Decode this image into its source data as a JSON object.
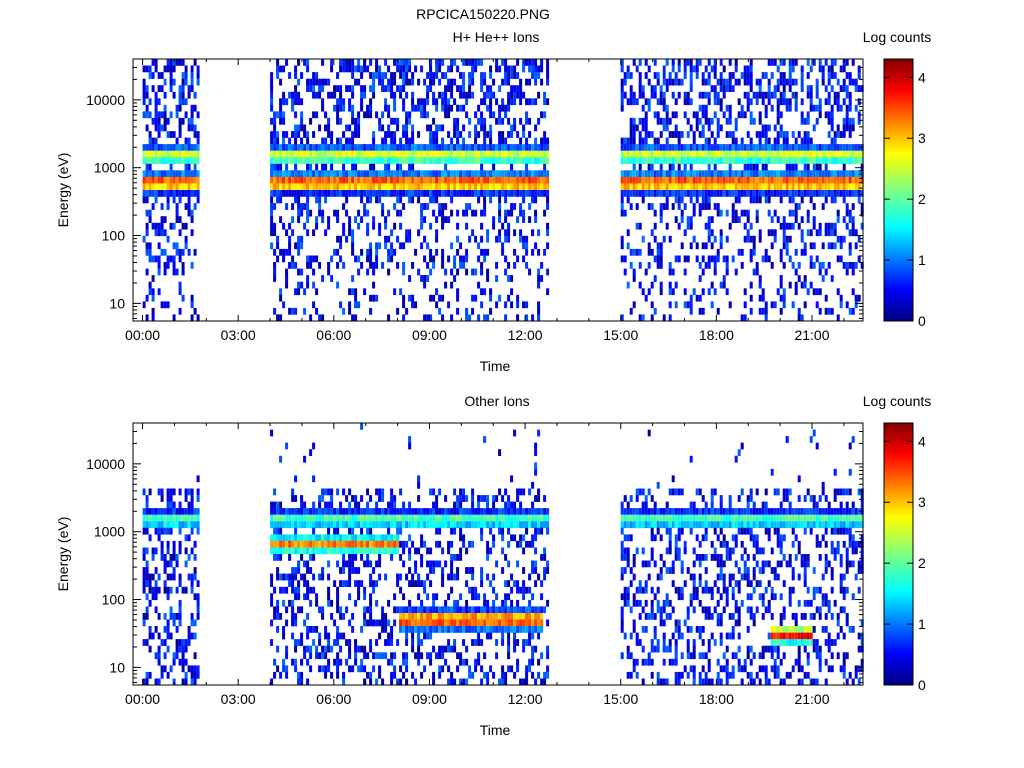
{
  "page": {
    "title": "RPCICA150220.PNG"
  },
  "chart_data": [
    {
      "type": "heatmap",
      "title": "H+ He++ Ions",
      "xlabel": "Time",
      "ylabel": "Energy (eV)",
      "colorbar_label": "Log counts",
      "x_ticks": [
        "00:00",
        "03:00",
        "06:00",
        "09:00",
        "12:00",
        "15:00",
        "18:00",
        "21:00"
      ],
      "x_range_hours": [
        -0.3,
        22.6
      ],
      "y_ticks": [
        "10",
        "100",
        "1000",
        "10000"
      ],
      "y_range_ev": [
        5.5,
        40000
      ],
      "y_scale": "log",
      "colorbar_ticks": [
        "0",
        "1",
        "2",
        "3",
        "4"
      ],
      "colorbar_range": [
        0,
        4.3
      ],
      "data_gaps_hours": [
        [
          1.75,
          4.0
        ],
        [
          12.75,
          15.0
        ]
      ],
      "data_intervals_hours": [
        [
          0.0,
          1.75
        ],
        [
          4.0,
          12.75
        ],
        [
          15.0,
          22.6
        ]
      ],
      "features": [
        {
          "description_energy_ev": 1500,
          "level": 2.6,
          "span_hours": [
            0.0,
            22.6
          ]
        },
        {
          "description_energy_ev": 600,
          "level": 3.7,
          "span_hours": [
            0.0,
            22.6
          ]
        }
      ]
    },
    {
      "type": "heatmap",
      "title": "Other Ions",
      "xlabel": "Time",
      "ylabel": "Energy (eV)",
      "colorbar_label": "Log counts",
      "x_ticks": [
        "00:00",
        "03:00",
        "06:00",
        "09:00",
        "12:00",
        "15:00",
        "18:00",
        "21:00"
      ],
      "x_range_hours": [
        -0.3,
        22.6
      ],
      "y_ticks": [
        "10",
        "100",
        "1000",
        "10000"
      ],
      "y_range_ev": [
        5.5,
        40000
      ],
      "y_scale": "log",
      "colorbar_ticks": [
        "0",
        "1",
        "2",
        "3",
        "4"
      ],
      "colorbar_range": [
        0,
        4.3
      ],
      "data_gaps_hours": [
        [
          1.75,
          4.0
        ],
        [
          12.75,
          15.0
        ]
      ],
      "data_intervals_hours": [
        [
          0.0,
          1.75
        ],
        [
          4.0,
          12.75
        ],
        [
          15.0,
          22.6
        ]
      ],
      "features": [
        {
          "description_energy_ev": 1500,
          "level": 2.0,
          "span_hours": [
            0.0,
            22.6
          ]
        },
        {
          "description_energy_ev": 650,
          "level": 3.2,
          "span_hours": [
            4.0,
            8.0
          ]
        },
        {
          "description_energy_ev": 50,
          "level": 3.8,
          "span_hours": [
            8.0,
            12.5
          ]
        },
        {
          "description_energy_ev": 30,
          "level": 3.8,
          "span_hours": [
            19.7,
            21.0
          ]
        }
      ]
    }
  ]
}
